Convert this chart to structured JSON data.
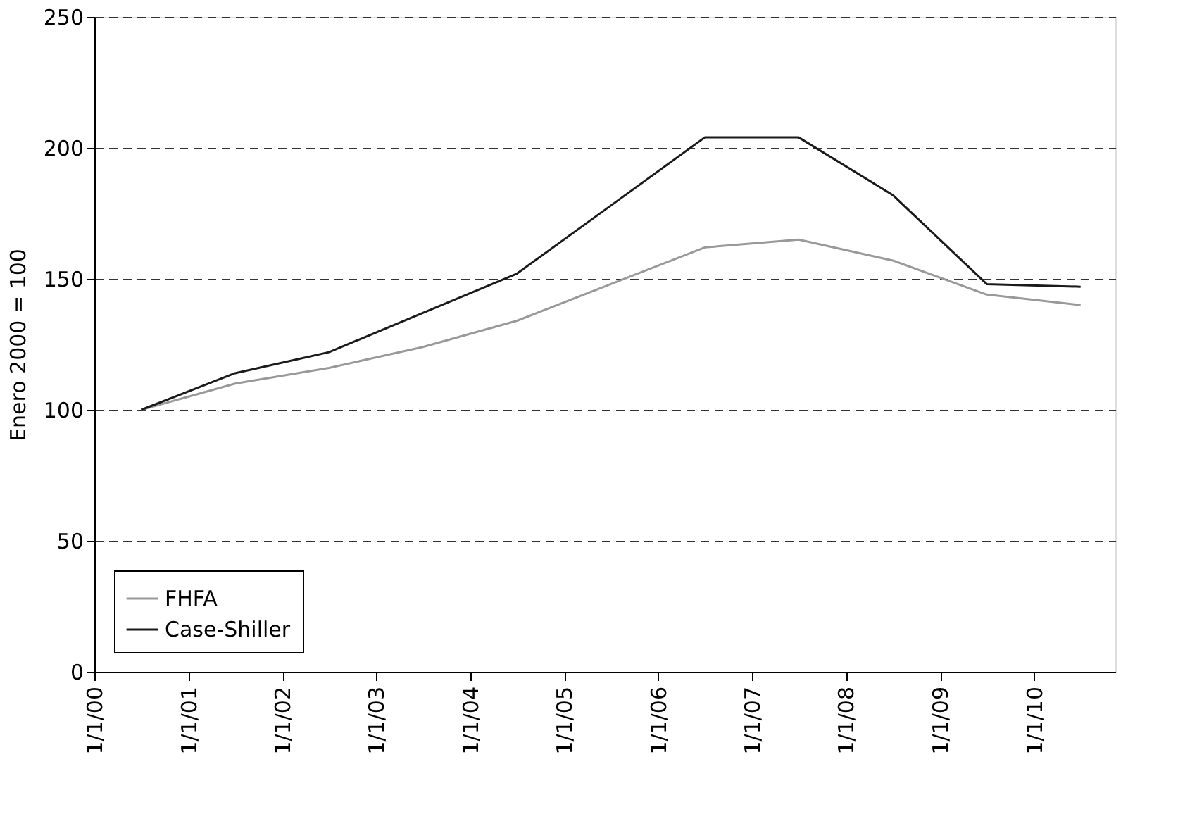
{
  "chart_data": {
    "type": "line",
    "ylabel": "Enero 2000 = 100",
    "x": [
      "2000-07",
      "2001-07",
      "2002-07",
      "2003-07",
      "2004-07",
      "2005-07",
      "2006-07",
      "2007-07",
      "2008-07",
      "2009-07",
      "2010-07"
    ],
    "series": [
      {
        "name": "FHFA",
        "color": "#999999",
        "values": [
          100,
          110,
          116,
          124,
          134,
          148,
          162,
          165,
          157,
          144,
          140
        ]
      },
      {
        "name": "Case-Shiller",
        "color": "#1a1a1a",
        "values": [
          100,
          114,
          122,
          137,
          152,
          178,
          204,
          204,
          182,
          148,
          147
        ]
      }
    ],
    "xlim": [
      "2000-01-01",
      "2010-11-13"
    ],
    "xticks": [
      {
        "value": "2000-01-01",
        "label": "1/1/00"
      },
      {
        "value": "2001-01-01",
        "label": "1/1/01"
      },
      {
        "value": "2002-01-01",
        "label": "1/1/02"
      },
      {
        "value": "2003-01-01",
        "label": "1/1/03"
      },
      {
        "value": "2004-01-01",
        "label": "1/1/04"
      },
      {
        "value": "2005-01-01",
        "label": "1/1/05"
      },
      {
        "value": "2006-01-01",
        "label": "1/1/06"
      },
      {
        "value": "2007-01-01",
        "label": "1/1/07"
      },
      {
        "value": "2008-01-01",
        "label": "1/1/08"
      },
      {
        "value": "2009-01-01",
        "label": "1/1/09"
      },
      {
        "value": "2010-01-01",
        "label": "1/1/10"
      }
    ],
    "ylim": [
      0,
      250
    ],
    "yticks": [
      0,
      50,
      100,
      150,
      200,
      250
    ],
    "grid": "y",
    "legend": "bottom left",
    "marker": "none",
    "line_style": "solid"
  }
}
